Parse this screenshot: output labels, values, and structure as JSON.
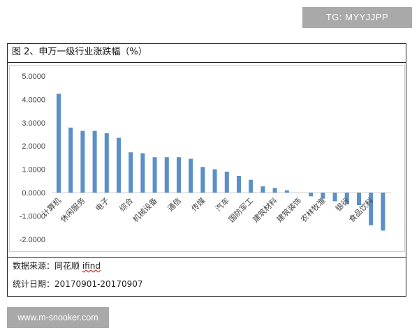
{
  "watermarks": {
    "top": "TG: MYYJJPP",
    "bottom": "www.m-snooker.com"
  },
  "figure_title": "图 2、申万一级行业涨跌幅（%）",
  "footer": {
    "source_label": "数据来源：同花顺 ",
    "source_value": "ifind",
    "date_line": "统计日期：20170901-20170907"
  },
  "chart_data": {
    "type": "bar",
    "title": "",
    "xlabel": "",
    "ylabel": "",
    "ylim": [
      -2,
      5
    ],
    "yticks": [
      "5.0000",
      "4.0000",
      "3.0000",
      "2.0000",
      "1.0000",
      "0.0000",
      "-1.0000",
      "-2.0000"
    ],
    "ytick_values": [
      5,
      4,
      3,
      2,
      1,
      0,
      -1,
      -2
    ],
    "grid": false,
    "bar_color": "#5b8fc7",
    "categories": [
      "计算机",
      "",
      "休闲服务",
      "",
      "电子",
      "",
      "综合",
      "",
      "机械设备",
      "",
      "通信",
      "",
      "传媒",
      "",
      "汽车",
      "",
      "国防军工",
      "",
      "建筑材料",
      "",
      "建筑装饰",
      "",
      "农林牧渔",
      "",
      "银行",
      "",
      "食品饮料",
      ""
    ],
    "values": [
      4.24,
      2.79,
      2.65,
      2.65,
      2.55,
      2.35,
      1.73,
      1.69,
      1.52,
      1.52,
      1.52,
      1.45,
      1.1,
      1.0,
      0.9,
      0.72,
      0.55,
      0.27,
      0.2,
      0.1,
      0.0,
      -0.16,
      -0.26,
      -0.37,
      -0.5,
      -0.54,
      -1.4,
      -1.63
    ]
  }
}
